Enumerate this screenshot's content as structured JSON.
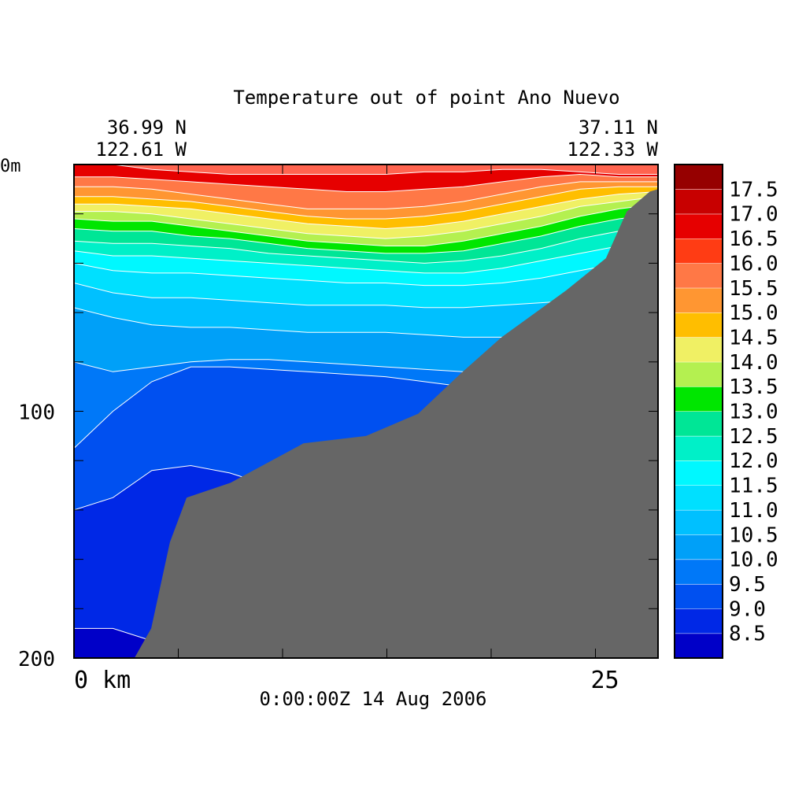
{
  "chart_data": {
    "type": "heatmap",
    "title": "Temperature out of point Ano Nuevo",
    "start": {
      "lat": "36.99 N",
      "lon": "122.61 W"
    },
    "end": {
      "lat": "37.11 N",
      "lon": "122.33 W"
    },
    "timestamp": "0:00:00Z  14 Aug 2006",
    "xlabel": "km",
    "ylabel": "m",
    "xlim": [
      0,
      28
    ],
    "ylim": [
      0,
      200
    ],
    "x_tick_labels": [
      {
        "value": 0,
        "label": "0 km"
      },
      {
        "value": 25,
        "label": "25"
      }
    ],
    "y_tick_labels": [
      {
        "value": 0,
        "label": "0m"
      },
      {
        "value": 100,
        "label": "100"
      },
      {
        "value": 200,
        "label": "200"
      }
    ],
    "y_minor_ticks": [
      20,
      40,
      60,
      80,
      120,
      140,
      160,
      180
    ],
    "x_minor_ticks": [
      5,
      10,
      15,
      20
    ],
    "levels": [
      {
        "label": "8.5",
        "color": "#0000c8"
      },
      {
        "label": "9.0",
        "color": "#0028e6"
      },
      {
        "label": "9.5",
        "color": "#0050f0"
      },
      {
        "label": "10.0",
        "color": "#0078f8"
      },
      {
        "label": "10.5",
        "color": "#00a0f8"
      },
      {
        "label": "11.0",
        "color": "#00c0ff"
      },
      {
        "label": "11.5",
        "color": "#00e0ff"
      },
      {
        "label": "12.0",
        "color": "#00f8ff"
      },
      {
        "label": "12.5",
        "color": "#00f0c8"
      },
      {
        "label": "13.0",
        "color": "#00e696"
      },
      {
        "label": "13.5",
        "color": "#00e600"
      },
      {
        "label": "14.0",
        "color": "#b4f050"
      },
      {
        "label": "14.5",
        "color": "#f0f064"
      },
      {
        "label": "15.0",
        "color": "#ffbe00"
      },
      {
        "label": "15.5",
        "color": "#ff9632"
      },
      {
        "label": "16.0",
        "color": "#ff7846"
      },
      {
        "label": "16.5",
        "color": "#ff3c14"
      },
      {
        "label": "17.0",
        "color": "#e60000"
      },
      {
        "label": "17.5",
        "color": "#c80000"
      },
      {
        "label": "",
        "color": "#960000"
      }
    ],
    "layers": [
      {
        "level": "17.0",
        "depth": [
          0,
          0,
          2,
          3,
          4,
          4,
          4,
          4,
          4,
          3,
          3,
          2,
          2,
          3,
          4,
          4
        ]
      },
      {
        "level": "16.0",
        "depth": [
          5,
          5,
          6,
          7,
          8,
          9,
          10,
          11,
          11,
          10,
          9,
          7,
          5,
          4,
          5,
          5
        ]
      },
      {
        "level": "15.5",
        "depth": [
          9,
          9,
          10,
          12,
          14,
          16,
          18,
          18,
          18,
          17,
          15,
          12,
          9,
          7,
          7,
          7
        ]
      },
      {
        "level": "15.0",
        "depth": [
          13,
          13,
          14,
          15,
          17,
          19,
          21,
          22,
          22,
          21,
          19,
          16,
          13,
          10,
          9,
          9
        ]
      },
      {
        "level": "14.5",
        "depth": [
          16,
          16,
          17,
          18,
          20,
          22,
          24,
          25,
          26,
          25,
          23,
          20,
          17,
          14,
          12,
          11
        ]
      },
      {
        "level": "14.0",
        "depth": [
          19,
          19,
          20,
          22,
          24,
          26,
          28,
          29,
          30,
          29,
          27,
          24,
          21,
          17,
          15,
          13
        ]
      },
      {
        "level": "13.5",
        "depth": [
          22,
          23,
          23,
          25,
          27,
          29,
          31,
          32,
          33,
          33,
          31,
          28,
          25,
          21,
          18,
          16
        ]
      },
      {
        "level": "13.0",
        "depth": [
          26,
          27,
          27,
          29,
          30,
          32,
          34,
          35,
          36,
          36,
          35,
          32,
          29,
          25,
          22,
          20
        ]
      },
      {
        "level": "12.5",
        "depth": [
          31,
          32,
          32,
          33,
          34,
          36,
          37,
          38,
          39,
          40,
          39,
          37,
          34,
          30,
          27,
          24
        ]
      },
      {
        "level": "12.0",
        "depth": [
          35,
          37,
          37,
          38,
          39,
          40,
          41,
          42,
          43,
          44,
          44,
          42,
          39,
          36,
          33,
          30
        ]
      },
      {
        "level": "11.5",
        "depth": [
          40,
          43,
          44,
          44,
          45,
          46,
          47,
          48,
          48,
          49,
          49,
          48,
          46,
          43,
          40,
          37
        ]
      },
      {
        "level": "11.0",
        "depth": [
          48,
          52,
          54,
          54,
          55,
          56,
          57,
          57,
          57,
          58,
          58,
          57,
          56,
          55,
          53,
          50
        ]
      },
      {
        "level": "10.5",
        "depth": [
          58,
          62,
          65,
          66,
          66,
          67,
          68,
          68,
          68,
          69,
          70,
          70,
          70,
          70,
          70,
          70
        ]
      },
      {
        "level": "10.0",
        "depth": [
          80,
          84,
          82,
          80,
          79,
          79,
          80,
          81,
          82,
          83,
          84,
          85,
          86,
          87,
          88,
          88
        ]
      },
      {
        "level": "9.5",
        "depth": [
          115,
          100,
          88,
          82,
          82,
          83,
          84,
          85,
          86,
          88,
          90,
          92,
          94,
          96,
          98,
          100
        ]
      },
      {
        "level": "9.0",
        "depth": [
          140,
          135,
          124,
          122,
          125,
          130,
          140,
          150,
          160,
          170,
          180,
          190,
          200,
          200,
          200,
          200
        ]
      },
      {
        "level": "8.5",
        "depth": [
          188,
          188,
          193,
          200,
          200,
          200,
          200,
          200,
          200,
          200,
          200,
          200,
          200,
          200,
          200,
          200
        ]
      }
    ],
    "bottom_profile": [
      [
        28,
        0
      ],
      [
        28,
        10
      ],
      [
        27.6,
        11
      ],
      [
        26.5,
        19
      ],
      [
        25.5,
        38
      ],
      [
        23.6,
        51
      ],
      [
        20.5,
        70
      ],
      [
        18.5,
        85
      ],
      [
        16.5,
        101
      ],
      [
        14,
        110
      ],
      [
        11,
        113
      ],
      [
        7.5,
        129
      ],
      [
        5.4,
        135
      ],
      [
        4.6,
        153
      ],
      [
        3.7,
        188
      ],
      [
        2.9,
        200
      ],
      [
        28,
        200
      ]
    ]
  }
}
